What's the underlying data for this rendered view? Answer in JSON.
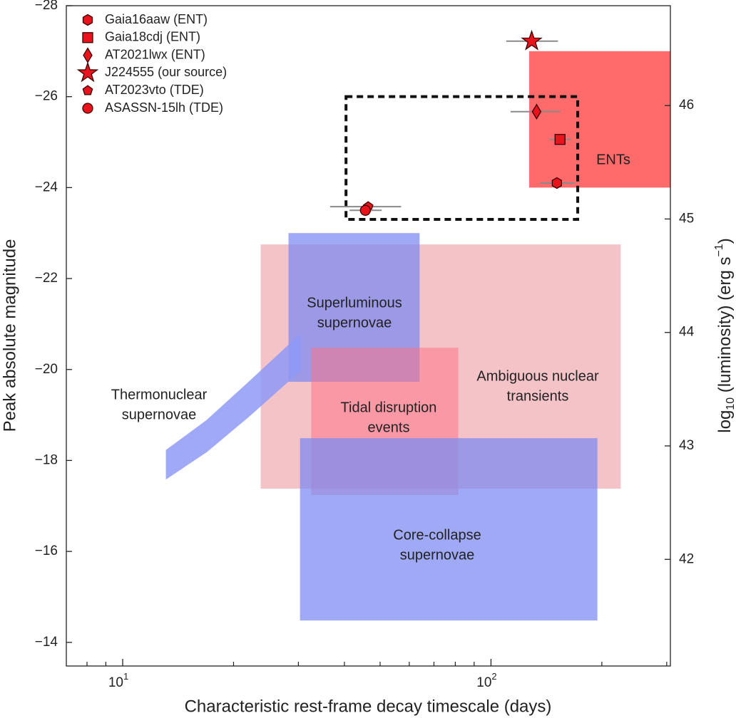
{
  "chart_data": {
    "type": "scatter",
    "xlabel": "Characteristic rest-frame decay timescale (days)",
    "ylabel": "Peak absolute magnitude",
    "y2label_parts": [
      "log",
      "10",
      " (luminosity) (erg s",
      "−1",
      ")"
    ],
    "xscale": "log",
    "xlim": [
      7.03,
      307
    ],
    "xticks": [
      {
        "value": 10,
        "label": "10",
        "exponent": "1"
      },
      {
        "value": 100,
        "label": "10",
        "exponent": "2"
      }
    ],
    "xminor_ticks": [
      8,
      9,
      20,
      30,
      40,
      50,
      60,
      70,
      80,
      90,
      200,
      300
    ],
    "ylim": [
      -13.48,
      -28
    ],
    "yticks": [
      {
        "value": -28,
        "label": "−28"
      },
      {
        "value": -26,
        "label": "−26"
      },
      {
        "value": -24,
        "label": "−24"
      },
      {
        "value": -22,
        "label": "−22"
      },
      {
        "value": -20,
        "label": "−20"
      },
      {
        "value": -18,
        "label": "−18"
      },
      {
        "value": -16,
        "label": "−16"
      },
      {
        "value": -14,
        "label": "−14"
      }
    ],
    "y2lim": [
      41.06,
      46.88
    ],
    "y2ticks": [
      42,
      43,
      44,
      45,
      46
    ],
    "legend": "upper left",
    "regions": [
      {
        "label_lines": [
          "Ambiguous nuclear",
          "transients"
        ],
        "x": [
          23.7,
          225
        ],
        "y": [
          -17.38,
          -22.75
        ],
        "color": "#f4c3c8",
        "opacity": 1
      },
      {
        "label_lines": [
          "Superluminous",
          "supernovae"
        ],
        "x": [
          28.2,
          64
        ],
        "y": [
          -19.73,
          -23.0
        ],
        "color": "#7f8cf2",
        "opacity": 0.75
      },
      {
        "label_lines": [
          "Tidal disruption",
          "events"
        ],
        "x": [
          32.5,
          81.5
        ],
        "y": [
          -17.24,
          -20.48
        ],
        "color": "#ff6f82",
        "opacity": 0.5
      },
      {
        "label_lines": [
          "Core-collapse",
          "supernovae"
        ],
        "x": [
          30.3,
          194.5
        ],
        "y": [
          -14.48,
          -18.49
        ],
        "color": "#7f8cf2",
        "opacity": 0.75
      },
      {
        "label_lines": [
          "ENTs"
        ],
        "x": [
          127,
          307
        ],
        "y": [
          -24,
          -27
        ],
        "color": "#ff6b6b",
        "opacity": 1
      }
    ],
    "band": {
      "label_lines": [
        "Thermonuclear",
        "supernovae"
      ],
      "x": [
        13.1,
        16.9,
        22.1,
        30.5
      ],
      "y_upper": [
        -18.23,
        -18.89,
        -19.75,
        -20.8
      ],
      "y_lower": [
        -17.58,
        -18.18,
        -18.97,
        -19.98
      ],
      "color": "#8e9af6",
      "opacity": 0.85
    },
    "highlight_box": {
      "x": [
        40.4,
        172
      ],
      "y": [
        -23.3,
        -26
      ]
    },
    "series": [
      {
        "name": "Gaia16aaw (ENT)",
        "marker": "hexagon",
        "color": "#e8131b",
        "x": [
          151
        ],
        "values": [
          -24.1
        ],
        "xerr": [
          [
            15,
            18
          ]
        ]
      },
      {
        "name": "Gaia18cdj (ENT)",
        "marker": "square",
        "color": "#e8131b",
        "x": [
          154
        ],
        "values": [
          -25.06
        ],
        "xerr": [
          [
            10,
            11
          ]
        ]
      },
      {
        "name": "AT2021lwx (ENT)",
        "marker": "diamond",
        "color": "#e8131b",
        "x": [
          133
        ],
        "values": [
          -25.67
        ],
        "xerr": [
          [
            20,
            21
          ]
        ]
      },
      {
        "name": "J224555 (our source)",
        "marker": "star",
        "color": "#e8131b",
        "x": [
          129
        ],
        "values": [
          -27.22
        ],
        "xerr": [
          [
            19,
            23
          ]
        ]
      },
      {
        "name": "AT2023vto (TDE)",
        "marker": "pentagon",
        "color": "#e8131b",
        "x": [
          46.4
        ],
        "values": [
          -23.58
        ],
        "xerr": [
          [
            9.8,
            10.6
          ]
        ]
      },
      {
        "name": "ASASSN-15lh (TDE)",
        "marker": "circle",
        "color": "#e8131b",
        "x": [
          45.6
        ],
        "values": [
          -23.5
        ],
        "xerr": [
          [
            4.3,
            4.9
          ]
        ]
      }
    ]
  }
}
